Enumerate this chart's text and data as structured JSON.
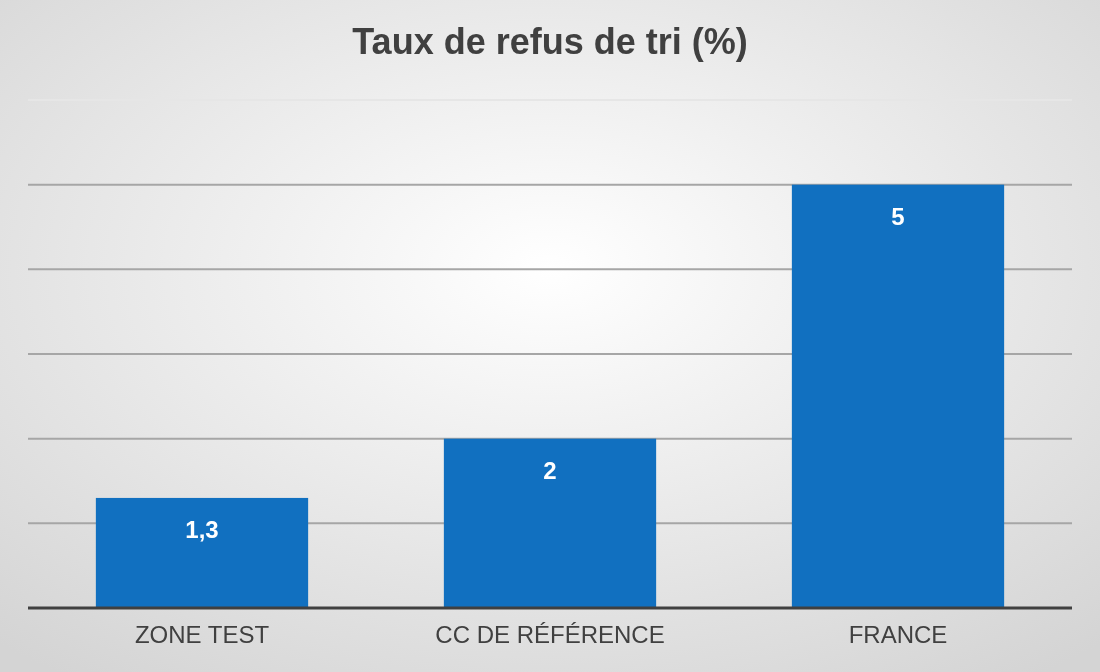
{
  "chart_data": {
    "type": "bar",
    "title": "Taux de refus de tri (%)",
    "categories": [
      "ZONE TEST",
      "CC DE RÉFÉRENCE",
      "FRANCE"
    ],
    "values": [
      1.3,
      2,
      5
    ],
    "color": "#1170c0",
    "value_labels": [
      "1,3",
      "2",
      "5"
    ],
    "ylim": [
      0,
      6
    ],
    "yticks": [
      {
        "value": 0,
        "label": null
      },
      {
        "value": 1,
        "label": null
      },
      {
        "value": 2,
        "label": null
      },
      {
        "value": 3,
        "label": null
      },
      {
        "value": 4,
        "label": null
      },
      {
        "value": 5,
        "label": null
      },
      {
        "value": 6,
        "label": null
      }
    ],
    "grid": "y",
    "tick_labels": "x"
  }
}
